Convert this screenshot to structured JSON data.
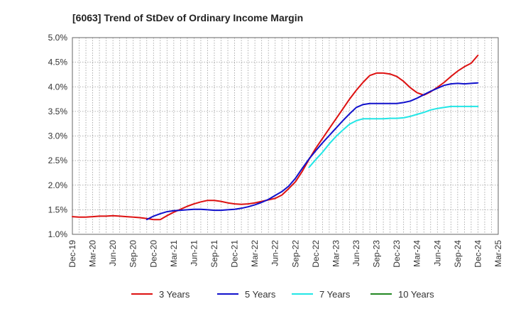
{
  "chart_data": {
    "type": "line",
    "title": "[6063]  Trend of StDev of Ordinary Income Margin",
    "xlabel": "",
    "ylabel": "",
    "ylim": [
      1.0,
      5.0
    ],
    "y_ticks": [
      1.0,
      1.5,
      2.0,
      2.5,
      3.0,
      3.5,
      4.0,
      4.5,
      5.0
    ],
    "y_tick_labels": [
      "1.0%",
      "1.5%",
      "2.0%",
      "2.5%",
      "3.0%",
      "3.5%",
      "4.0%",
      "4.5%",
      "5.0%"
    ],
    "x_tick_labels": [
      "Dec-19",
      "Mar-20",
      "Jun-20",
      "Sep-20",
      "Dec-20",
      "Mar-21",
      "Jun-21",
      "Sep-21",
      "Dec-21",
      "Mar-22",
      "Jun-22",
      "Sep-22",
      "Dec-22",
      "Mar-23",
      "Jun-23",
      "Sep-23",
      "Dec-23",
      "Mar-24",
      "Jun-24",
      "Sep-24",
      "Dec-24",
      "Mar-25"
    ],
    "grid": true,
    "legend_position": "bottom",
    "series": [
      {
        "name": "3 Years",
        "color": "#dd1111",
        "x": [
          "Dec-19",
          "Jan-20",
          "Feb-20",
          "Mar-20",
          "Apr-20",
          "May-20",
          "Jun-20",
          "Jul-20",
          "Aug-20",
          "Sep-20",
          "Oct-20",
          "Nov-20",
          "Dec-20",
          "Jan-21",
          "Feb-21",
          "Mar-21",
          "Apr-21",
          "May-21",
          "Jun-21",
          "Jul-21",
          "Aug-21",
          "Sep-21",
          "Oct-21",
          "Nov-21",
          "Dec-21",
          "Jan-22",
          "Feb-22",
          "Mar-22",
          "Apr-22",
          "May-22",
          "Jun-22",
          "Jul-22",
          "Aug-22",
          "Sep-22",
          "Oct-22",
          "Nov-22",
          "Dec-22",
          "Jan-23",
          "Feb-23",
          "Mar-23",
          "Apr-23",
          "May-23",
          "Jun-23",
          "Jul-23",
          "Aug-23",
          "Sep-23",
          "Oct-23",
          "Nov-23",
          "Dec-23",
          "Jan-24",
          "Feb-24",
          "Mar-24",
          "Apr-24",
          "May-24",
          "Jun-24",
          "Jul-24",
          "Aug-24",
          "Sep-24",
          "Oct-24",
          "Nov-24",
          "Dec-24"
        ],
        "values": [
          1.36,
          1.35,
          1.35,
          1.36,
          1.37,
          1.37,
          1.38,
          1.37,
          1.36,
          1.35,
          1.34,
          1.32,
          1.3,
          1.3,
          1.38,
          1.45,
          1.51,
          1.57,
          1.62,
          1.66,
          1.69,
          1.69,
          1.67,
          1.64,
          1.62,
          1.61,
          1.62,
          1.64,
          1.67,
          1.7,
          1.73,
          1.8,
          1.93,
          2.07,
          2.28,
          2.52,
          2.75,
          2.95,
          3.15,
          3.35,
          3.55,
          3.75,
          3.93,
          4.09,
          4.23,
          4.28,
          4.28,
          4.26,
          4.21,
          4.11,
          3.98,
          3.88,
          3.83,
          3.9,
          3.99,
          4.09,
          4.21,
          4.32,
          4.41,
          4.48,
          4.64
        ]
      },
      {
        "name": "5 Years",
        "color": "#1111cc",
        "x": [
          "Nov-20",
          "Dec-20",
          "Jan-21",
          "Feb-21",
          "Mar-21",
          "Apr-21",
          "May-21",
          "Jun-21",
          "Jul-21",
          "Aug-21",
          "Sep-21",
          "Oct-21",
          "Nov-21",
          "Dec-21",
          "Jan-22",
          "Feb-22",
          "Mar-22",
          "Apr-22",
          "May-22",
          "Jun-22",
          "Jul-22",
          "Aug-22",
          "Sep-22",
          "Oct-22",
          "Nov-22",
          "Dec-22",
          "Jan-23",
          "Feb-23",
          "Mar-23",
          "Apr-23",
          "May-23",
          "Jun-23",
          "Jul-23",
          "Aug-23",
          "Sep-23",
          "Oct-23",
          "Nov-23",
          "Dec-23",
          "Jan-24",
          "Feb-24",
          "Mar-24",
          "Apr-24",
          "May-24",
          "Jun-24",
          "Jul-24",
          "Aug-24",
          "Sep-24",
          "Oct-24",
          "Nov-24",
          "Dec-24"
        ],
        "values": [
          1.3,
          1.37,
          1.42,
          1.46,
          1.48,
          1.49,
          1.5,
          1.51,
          1.51,
          1.5,
          1.49,
          1.49,
          1.5,
          1.51,
          1.53,
          1.56,
          1.6,
          1.65,
          1.71,
          1.79,
          1.87,
          1.98,
          2.14,
          2.34,
          2.53,
          2.7,
          2.86,
          3.01,
          3.16,
          3.31,
          3.45,
          3.58,
          3.64,
          3.66,
          3.66,
          3.66,
          3.66,
          3.66,
          3.68,
          3.71,
          3.77,
          3.84,
          3.91,
          3.97,
          4.03,
          4.06,
          4.07,
          4.06,
          4.07,
          4.08
        ]
      },
      {
        "name": "7 Years",
        "color": "#22e6e6",
        "x": [
          "Nov-22",
          "Dec-22",
          "Jan-23",
          "Feb-23",
          "Mar-23",
          "Apr-23",
          "May-23",
          "Jun-23",
          "Jul-23",
          "Aug-23",
          "Sep-23",
          "Oct-23",
          "Nov-23",
          "Dec-23",
          "Jan-24",
          "Feb-24",
          "Mar-24",
          "Apr-24",
          "May-24",
          "Jun-24",
          "Jul-24",
          "Aug-24",
          "Sep-24",
          "Oct-24",
          "Nov-24",
          "Dec-24"
        ],
        "values": [
          2.36,
          2.52,
          2.67,
          2.84,
          2.99,
          3.12,
          3.24,
          3.31,
          3.35,
          3.35,
          3.35,
          3.35,
          3.36,
          3.36,
          3.37,
          3.4,
          3.44,
          3.48,
          3.53,
          3.56,
          3.58,
          3.6,
          3.6,
          3.6,
          3.6,
          3.6
        ]
      },
      {
        "name": "10 Years",
        "color": "#228822",
        "x": [],
        "values": []
      }
    ]
  }
}
